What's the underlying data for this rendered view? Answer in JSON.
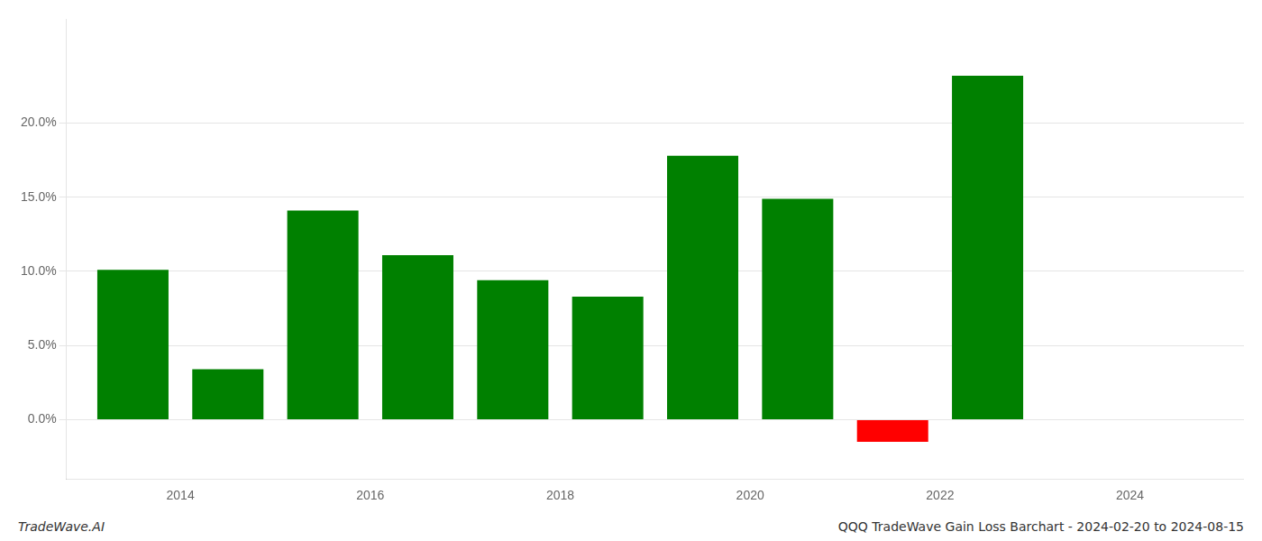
{
  "chart_data": {
    "type": "bar",
    "title": "QQQ TradeWave Gain Loss Barchart - 2024-02-20 to 2024-08-15",
    "annotations": [
      "TradeWave.AI"
    ],
    "x": [
      2013.5,
      2014.5,
      2015.5,
      2016.5,
      2017.5,
      2018.5,
      2019.5,
      2020.5,
      2021.5,
      2022.5,
      2023.5
    ],
    "values": [
      0.101,
      0.034,
      0.141,
      0.111,
      0.094,
      0.083,
      0.178,
      0.149,
      -0.015,
      0.232,
      0.0
    ],
    "colors": [
      "#008000",
      "#008000",
      "#008000",
      "#008000",
      "#008000",
      "#008000",
      "#008000",
      "#008000",
      "#ff0000",
      "#008000",
      "#008000"
    ],
    "xlim": [
      2012.8,
      2025.2
    ],
    "xticks": [
      2014,
      2016,
      2018,
      2020,
      2022,
      2024
    ],
    "ylim": [
      -0.04,
      0.27
    ],
    "yticks": [
      {
        "value": 0.0,
        "label": "0.0%"
      },
      {
        "value": 0.05,
        "label": "5.0%"
      },
      {
        "value": 0.1,
        "label": "10.0%"
      },
      {
        "value": 0.15,
        "label": "15.0%"
      },
      {
        "value": 0.2,
        "label": "20.0%"
      }
    ],
    "grid": "y"
  }
}
